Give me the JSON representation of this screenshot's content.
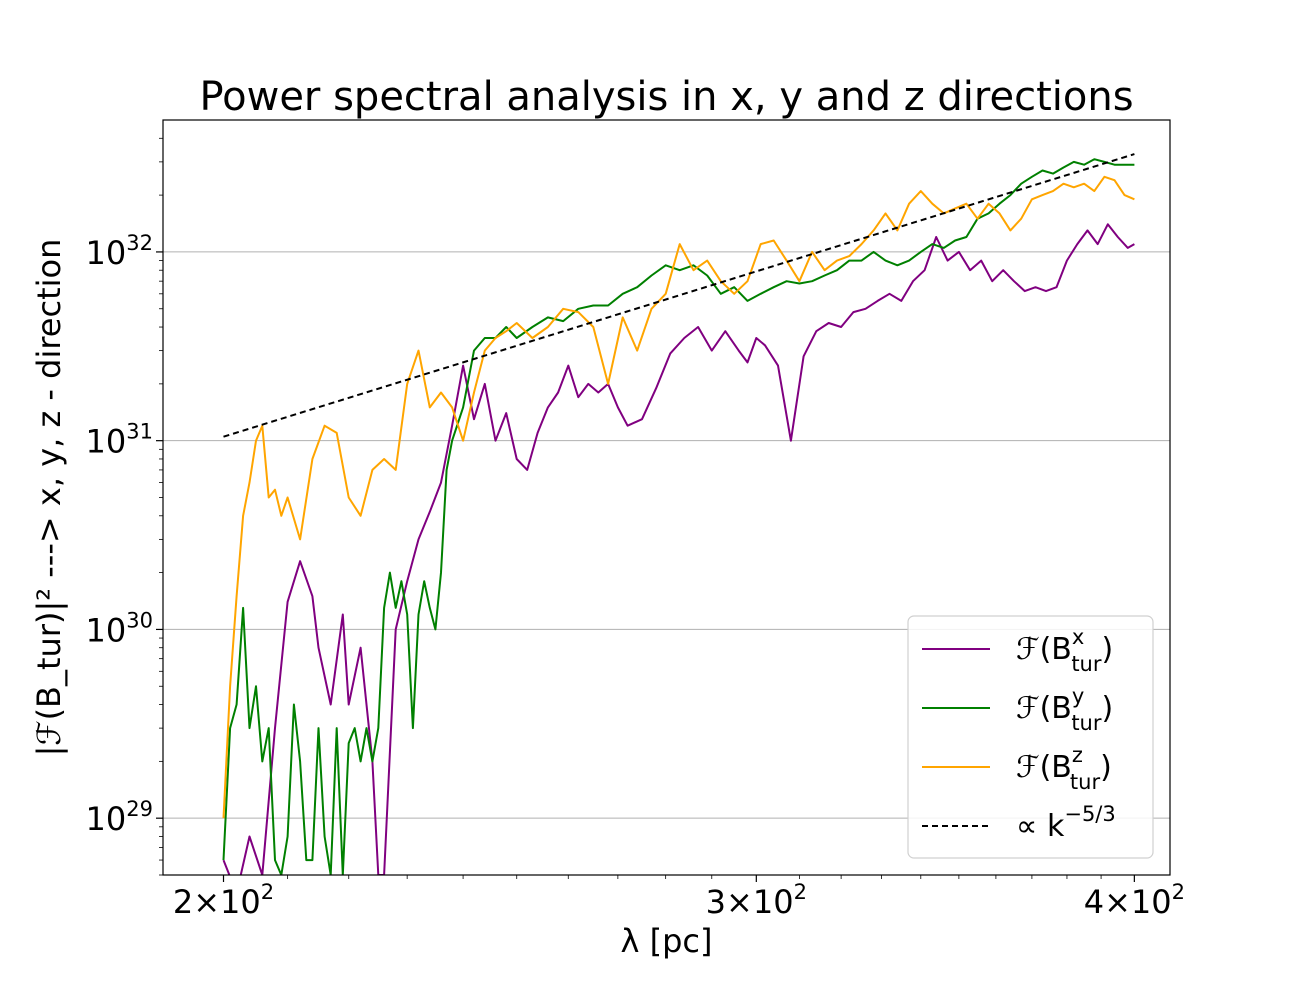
{
  "chart_data": {
    "type": "line",
    "title": "Power spectral analysis in x, y and z directions",
    "xlabel": "λ [pc]",
    "ylabel": "|ℱ(B_tur)|² ---> x, y, z - direction",
    "xscale": "log",
    "yscale": "log",
    "xlim": [
      191,
      411
    ],
    "ylim": [
      5e+28,
      5e+32
    ],
    "x_ticks": [
      {
        "value": 200,
        "mantissa": "2×10",
        "exp": "2"
      },
      {
        "value": 300,
        "mantissa": "3×10",
        "exp": "2"
      },
      {
        "value": 400,
        "mantissa": "4×10",
        "exp": "2"
      }
    ],
    "y_ticks": [
      {
        "value": 1e+29,
        "base": "10",
        "exp": "29"
      },
      {
        "value": 1e+30,
        "base": "10",
        "exp": "30"
      },
      {
        "value": 1e+31,
        "base": "10",
        "exp": "31"
      },
      {
        "value": 1e+32,
        "base": "10",
        "exp": "32"
      }
    ],
    "grid": "horizontal major",
    "legend_position": "lower-right",
    "series": [
      {
        "name": "ℱ(B_tur^x)",
        "legend_base": "ℱ(B",
        "legend_sup": "x",
        "legend_sub": "tur",
        "legend_close": ")",
        "color": "#800080",
        "style": "solid",
        "x": [
          200,
          202,
          204,
          206,
          208,
          210,
          212,
          214,
          215,
          217,
          219,
          220,
          222,
          224,
          225,
          226,
          228,
          230,
          232,
          234,
          236,
          238,
          240,
          242,
          244,
          246,
          248,
          250,
          252,
          254,
          256,
          258,
          260,
          262,
          264,
          266,
          268,
          270,
          272,
          275,
          278,
          281,
          284,
          287,
          290,
          293,
          296,
          298,
          300,
          302,
          305,
          308,
          311,
          314,
          317,
          320,
          323,
          326,
          329,
          332,
          335,
          338,
          341,
          344,
          347,
          350,
          353,
          356,
          359,
          362,
          365,
          368,
          371,
          374,
          377,
          380,
          383,
          386,
          389,
          392,
          395,
          398,
          400
        ],
        "y": [
          6e+28,
          4e+28,
          8e+28,
          5e+28,
          3e+29,
          1.4e+30,
          2.3e+30,
          1.5e+30,
          8e+29,
          4e+29,
          1.2e+30,
          4e+29,
          8e+29,
          2e+29,
          5e+28,
          5e+28,
          1e+30,
          1.8e+30,
          3e+30,
          4.2e+30,
          6e+30,
          1.2e+31,
          2.5e+31,
          1.3e+31,
          2e+31,
          1e+31,
          1.4e+31,
          8e+30,
          7e+30,
          1.1e+31,
          1.5e+31,
          1.8e+31,
          2.5e+31,
          1.7e+31,
          2e+31,
          1.8e+31,
          2e+31,
          1.5e+31,
          1.2e+31,
          1.3e+31,
          1.9e+31,
          2.9e+31,
          3.5e+31,
          4e+31,
          3e+31,
          3.8e+31,
          3e+31,
          2.6e+31,
          3.5e+31,
          3.2e+31,
          2.5e+31,
          1e+31,
          2.8e+31,
          3.8e+31,
          4.2e+31,
          4e+31,
          4.8e+31,
          5e+31,
          5.5e+31,
          6e+31,
          5.5e+31,
          7e+31,
          8e+31,
          1.2e+32,
          9e+31,
          1e+32,
          8e+31,
          9e+31,
          7e+31,
          8e+31,
          7e+31,
          6.2e+31,
          6.5e+31,
          6.2e+31,
          6.5e+31,
          9e+31,
          1.1e+32,
          1.3e+32,
          1.1e+32,
          1.4e+32,
          1.2e+32,
          1.05e+32,
          1.1e+32
        ]
      },
      {
        "name": "ℱ(B_tur^y)",
        "legend_base": "ℱ(B",
        "legend_sup": "y",
        "legend_sub": "tur",
        "legend_close": ")",
        "color": "#008000",
        "style": "solid",
        "x": [
          200,
          201,
          202,
          203,
          204,
          205,
          206,
          207,
          208,
          209,
          210,
          211,
          212,
          213,
          214,
          215,
          216,
          217,
          218,
          219,
          220,
          221,
          222,
          223,
          224,
          225,
          226,
          227,
          228,
          229,
          230,
          231,
          232,
          233,
          234,
          235,
          236,
          237,
          238,
          240,
          242,
          244,
          246,
          248,
          250,
          253,
          256,
          259,
          262,
          265,
          268,
          271,
          274,
          277,
          280,
          283,
          286,
          289,
          292,
          295,
          298,
          301,
          304,
          307,
          310,
          313,
          316,
          319,
          322,
          325,
          328,
          331,
          334,
          337,
          340,
          343,
          346,
          349,
          352,
          355,
          358,
          361,
          364,
          367,
          370,
          373,
          376,
          379,
          382,
          385,
          388,
          391,
          394,
          397,
          400
        ],
        "y": [
          6e+28,
          3e+29,
          4e+29,
          1.3e+30,
          3e+29,
          5e+29,
          2e+29,
          3e+29,
          6e+28,
          5e+28,
          8e+28,
          4e+29,
          2e+29,
          6e+28,
          6e+28,
          3e+29,
          8e+28,
          5e+28,
          3e+29,
          5e+28,
          2.5e+29,
          3e+29,
          2e+29,
          3e+29,
          2e+29,
          3e+29,
          1.3e+30,
          2e+30,
          1.3e+30,
          1.8e+30,
          1.2e+30,
          3e+29,
          1.2e+30,
          1.8e+30,
          1.3e+30,
          1e+30,
          2e+30,
          7e+30,
          1e+31,
          1.5e+31,
          3e+31,
          3.5e+31,
          3.5e+31,
          4e+31,
          3.5e+31,
          4e+31,
          4.5e+31,
          4.3e+31,
          5e+31,
          5.2e+31,
          5.2e+31,
          6e+31,
          6.5e+31,
          7.5e+31,
          8.5e+31,
          8e+31,
          8.5e+31,
          7.5e+31,
          6e+31,
          6.5e+31,
          5.5e+31,
          6e+31,
          6.5e+31,
          7e+31,
          6.8e+31,
          7e+31,
          7.5e+31,
          8e+31,
          9e+31,
          9e+31,
          1e+32,
          9e+31,
          8.5e+31,
          9e+31,
          1e+32,
          1.1e+32,
          1.05e+32,
          1.15e+32,
          1.2e+32,
          1.5e+32,
          1.6e+32,
          1.8e+32,
          2e+32,
          2.3e+32,
          2.5e+32,
          2.7e+32,
          2.6e+32,
          2.8e+32,
          3e+32,
          2.9e+32,
          3.1e+32,
          3e+32,
          2.9e+32,
          2.9e+32,
          2.9e+32
        ]
      },
      {
        "name": "ℱ(B_tur^z)",
        "legend_base": "ℱ(B",
        "legend_sup": "z",
        "legend_sub": "tur",
        "legend_close": ")",
        "color": "#ffa500",
        "style": "solid",
        "x": [
          200,
          201,
          202,
          203,
          204,
          205,
          206,
          207,
          208,
          209,
          210,
          212,
          214,
          216,
          218,
          220,
          222,
          224,
          226,
          228,
          230,
          232,
          234,
          236,
          238,
          240,
          242,
          244,
          246,
          248,
          250,
          253,
          256,
          259,
          262,
          265,
          268,
          271,
          274,
          277,
          280,
          283,
          286,
          289,
          292,
          295,
          298,
          301,
          304,
          307,
          310,
          313,
          316,
          319,
          322,
          325,
          328,
          331,
          334,
          337,
          340,
          343,
          346,
          349,
          352,
          355,
          358,
          361,
          364,
          367,
          370,
          373,
          376,
          379,
          382,
          385,
          388,
          391,
          394,
          397,
          400
        ],
        "y": [
          1e+29,
          5e+29,
          1.5e+30,
          4e+30,
          6e+30,
          1e+31,
          1.2e+31,
          5e+30,
          5.5e+30,
          4e+30,
          5e+30,
          3e+30,
          8e+30,
          1.2e+31,
          1.1e+31,
          5e+30,
          4e+30,
          7e+30,
          8e+30,
          7e+30,
          2e+31,
          3e+31,
          1.5e+31,
          1.8e+31,
          1.5e+31,
          1e+31,
          1.8e+31,
          3e+31,
          3.5e+31,
          3.8e+31,
          4.2e+31,
          3.5e+31,
          4e+31,
          5e+31,
          4.8e+31,
          4e+31,
          2e+31,
          4.5e+31,
          3e+31,
          5e+31,
          6e+31,
          1.1e+32,
          8e+31,
          9e+31,
          7e+31,
          6e+31,
          7e+31,
          1.1e+32,
          1.15e+32,
          9e+31,
          7e+31,
          1e+32,
          8e+31,
          9e+31,
          9.5e+31,
          1.1e+32,
          1.3e+32,
          1.6e+32,
          1.3e+32,
          1.8e+32,
          2.1e+32,
          1.8e+32,
          1.6e+32,
          1.7e+32,
          1.8e+32,
          1.5e+32,
          1.8e+32,
          1.6e+32,
          1.3e+32,
          1.5e+32,
          1.9e+32,
          2e+32,
          2.1e+32,
          2.3e+32,
          2.2e+32,
          2.3e+32,
          2.1e+32,
          2.5e+32,
          2.4e+32,
          2e+32,
          1.9e+32
        ]
      },
      {
        "name": "∝ k^-5/3",
        "legend_base": "∝ k",
        "legend_sup": "−5/3",
        "legend_sub": "",
        "legend_close": "",
        "color": "#000000",
        "style": "dashed",
        "x": [
          200,
          400
        ],
        "y": [
          1.05e+31,
          3.3e+32
        ]
      }
    ]
  }
}
